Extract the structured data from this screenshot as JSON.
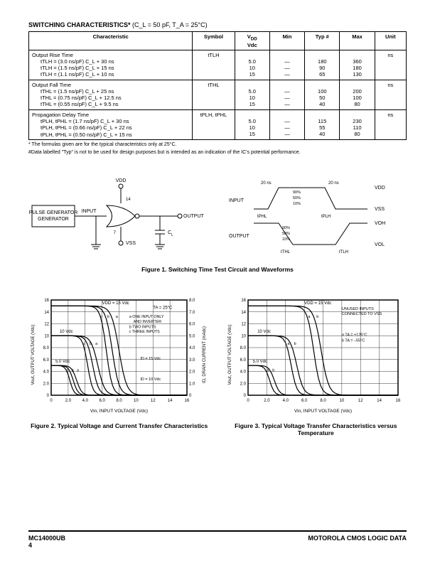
{
  "title": "SWITCHING CHARACTERISTICS* ",
  "title_cond": "(C_L = 50 pF, T_A = 25°C)",
  "table": {
    "headers": [
      "Characteristic",
      "Symbol",
      "VDD\nVdc",
      "Min",
      "Typ #",
      "Max",
      "Unit"
    ],
    "groups": [
      {
        "name": "Output Rise Time",
        "symbol": "tTLH",
        "unit": "ns",
        "lines": [
          {
            "formula": "tTLH = (3.0 ns/pF) C_L + 30 ns",
            "vdd": "5.0",
            "min": "—",
            "typ": "180",
            "max": "360"
          },
          {
            "formula": "tTLH = (1.5 ns/pF) C_L + 15 ns",
            "vdd": "10",
            "min": "—",
            "typ": "90",
            "max": "180"
          },
          {
            "formula": "tTLH = (1.1 ns/pF) C_L + 10 ns",
            "vdd": "15",
            "min": "—",
            "typ": "65",
            "max": "130"
          }
        ]
      },
      {
        "name": "Output Fall Time",
        "symbol": "tTHL",
        "unit": "ns",
        "lines": [
          {
            "formula": "tTHL = (1.5 ns/pF) C_L + 25 ns",
            "vdd": "5.0",
            "min": "—",
            "typ": "100",
            "max": "200"
          },
          {
            "formula": "tTHL = (0.75 ns/pF) C_L + 12.5 ns",
            "vdd": "10",
            "min": "—",
            "typ": "50",
            "max": "100"
          },
          {
            "formula": "tTHL = (0.55 ns/pF) C_L + 9.5 ns",
            "vdd": "15",
            "min": "—",
            "typ": "40",
            "max": "80"
          }
        ]
      },
      {
        "name": "Propagation Delay Time",
        "symbol": "tPLH, tPHL",
        "unit": "ns",
        "lines": [
          {
            "formula": "tPLH, tPHL = (1.7 ns/pF) C_L + 30 ns",
            "vdd": "5.0",
            "min": "—",
            "typ": "115",
            "max": "230"
          },
          {
            "formula": "tPLH, tPHL = (0.66 ns/pF) C_L + 22 ns",
            "vdd": "10",
            "min": "—",
            "typ": "55",
            "max": "110"
          },
          {
            "formula": "tPLH, tPHL = (0.50 ns/pF) C_L + 15 ns",
            "vdd": "15",
            "min": "—",
            "typ": "40",
            "max": "80"
          }
        ]
      }
    ]
  },
  "footnote1": "* The formulas given are for the typical characteristics only at 25°C.",
  "footnote2": "#Data labelled \"Typ\" is not to be used for design purposes but is intended as an indication of the IC's potential performance.",
  "figure1": {
    "caption": "Figure 1. Switching Time Test Circuit and Waveforms",
    "circuit": {
      "block": "PULSE GENERATOR",
      "input": "INPUT",
      "output": "OUTPUT",
      "vdd": "VDD",
      "vss": "VSS",
      "cl": "C_L",
      "pin14": "14",
      "pin7": "7"
    },
    "waveforms": {
      "input": "INPUT",
      "output": "OUTPUT",
      "vdd": "VDD",
      "vss": "VSS",
      "voh": "VOH",
      "vol": "VOL",
      "tplh": "tPLH",
      "tphl": "tPHL",
      "ttlh": "tTLH",
      "tthl": "tTHL",
      "t20ns": "20 ns",
      "p90": "90%",
      "p50": "50%",
      "p10": "10%"
    }
  },
  "figure2": {
    "caption": "Figure 2. Typical Voltage and Current Transfer Characteristics",
    "xlabel": "Vin, INPUT VOLTAGE (Vdc)",
    "ylabel_left": "Vout, OUTPUT VOLTAGE (Vdc)",
    "ylabel_right": "ID, DRAIN CURRENT (mAdc)",
    "vdd15": "VDD = 15 Vdc",
    "ta": "TA = 25°C",
    "v10": "10 Vdc",
    "v5": "5.0 Vdc",
    "id15": "ID = 15 Vdc",
    "id10": "ID = 10 Vdc",
    "legend_a": "a   ONE INPUT ONLY AND INVERTER",
    "legend_b": "b   TWO INPUTS",
    "legend_c": "c   THREE INPUTS",
    "xticks": [
      "0",
      "2.0",
      "4.0",
      "6.0",
      "8.0",
      "10",
      "12",
      "14",
      "16"
    ],
    "yticks_left": [
      "0",
      "2.0",
      "4.0",
      "6.0",
      "8.0",
      "10",
      "12",
      "14",
      "16"
    ],
    "yticks_right": [
      "0",
      "1.0",
      "2.0",
      "3.0",
      "4.0",
      "5.0",
      "6.0",
      "7.0",
      "8.0"
    ]
  },
  "figure3": {
    "caption": "Figure 3. Typical Voltage Transfer Characteristics versus Temperature",
    "xlabel": "Vin, INPUT VOLTAGE (Vdc)",
    "ylabel_left": "Vout, OUTPUT VOLTAGE (Vdc)",
    "vdd15": "VDD = 15 Vdc",
    "note": "UNUSED INPUTS CONNECTED TO VSS",
    "v10": "10 Vdc",
    "v5": "5.0 Vdc",
    "legend_a": "a   TA = +125°C",
    "legend_b": "b   TA = –55°C",
    "xticks": [
      "0",
      "2.0",
      "4.0",
      "6.0",
      "8.0",
      "10",
      "12",
      "14",
      "16"
    ],
    "yticks": [
      "0",
      "2.0",
      "4.0",
      "6.0",
      "8.0",
      "10",
      "12",
      "14",
      "16"
    ]
  },
  "footer": {
    "left": "MC14000UB",
    "page": "4",
    "right": "MOTOROLA CMOS LOGIC DATA"
  },
  "colors": {
    "line": "#000000",
    "bg": "#ffffff",
    "grid": "#000000"
  }
}
